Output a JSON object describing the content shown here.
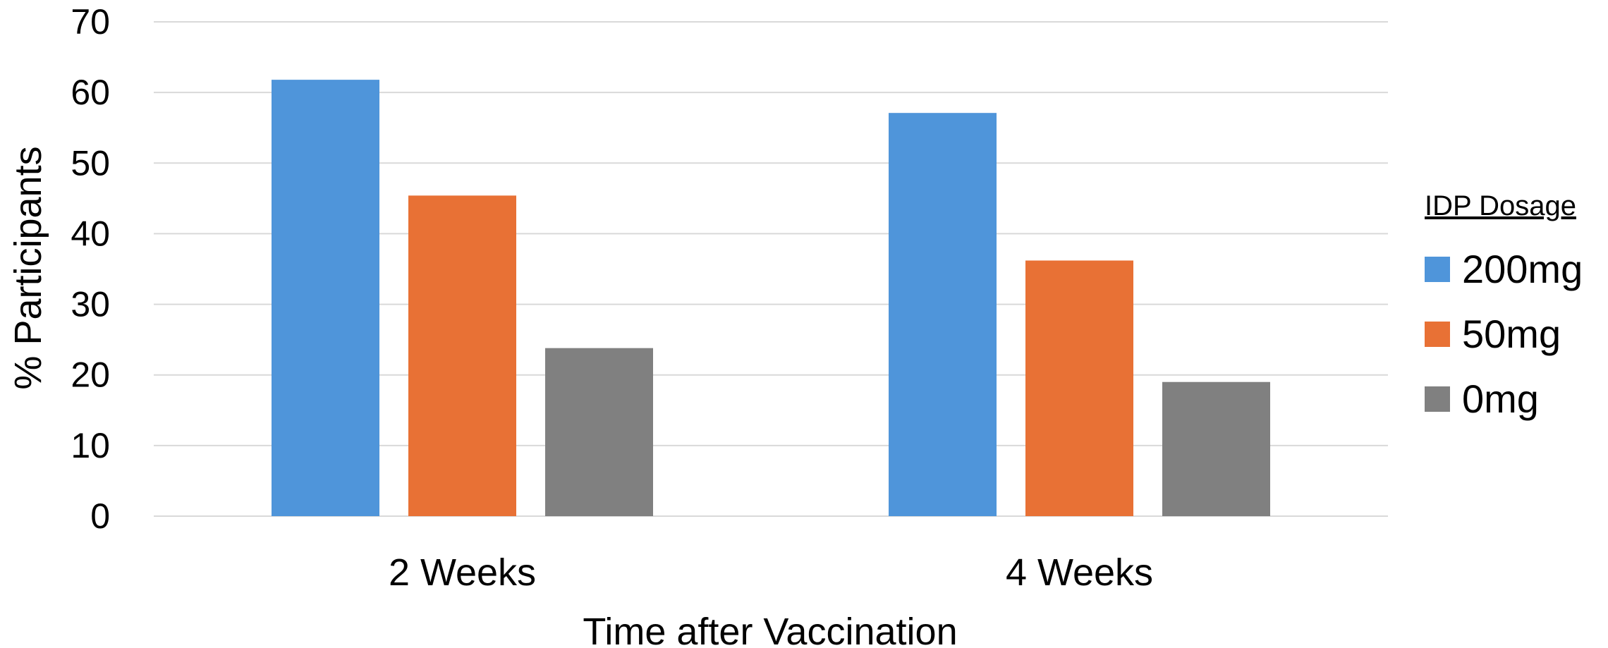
{
  "chart_data": {
    "type": "bar",
    "title": "",
    "xlabel": "Time after Vaccination",
    "ylabel": "% Participants",
    "categories": [
      "2 Weeks",
      "4 Weeks"
    ],
    "series": [
      {
        "name": "200mg",
        "values": [
          61.8,
          57.1
        ],
        "color": "#4F95DA"
      },
      {
        "name": "50mg",
        "values": [
          45.4,
          36.2
        ],
        "color": "#E87135"
      },
      {
        "name": "0mg",
        "values": [
          23.8,
          19.0
        ],
        "color": "#808080"
      }
    ],
    "ylim": [
      0,
      70
    ],
    "yticks": [
      "0",
      "10",
      "20",
      "30",
      "40",
      "50",
      "60",
      "70"
    ],
    "grid": true,
    "legend": {
      "title": "IDP Dosage",
      "position": "right"
    },
    "colors": {
      "gridline": "#D9D9D9",
      "text": "#000000"
    }
  }
}
